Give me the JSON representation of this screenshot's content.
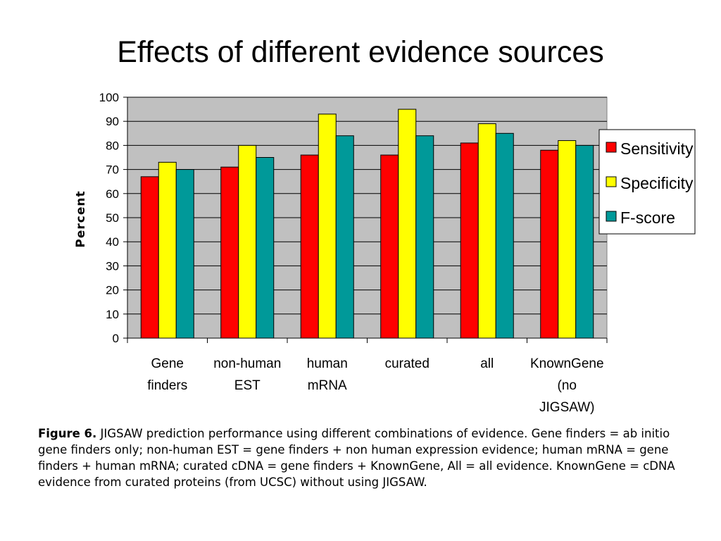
{
  "slide_title": "Effects of different evidence sources",
  "caption": {
    "label": "Figure 6.",
    "text": " JIGSAW prediction performance using different combinations of evidence. Gene finders = ab initio gene finders only; non-human EST = gene finders + non human expression evidence; human mRNA = gene finders + human mRNA; curated cDNA = gene finders + KnownGene, All = all evidence. KnownGene = cDNA evidence from curated proteins (from UCSC) without using JIGSAW."
  },
  "chart_data": {
    "type": "bar",
    "title": "",
    "xlabel": "",
    "ylabel": "Percent",
    "ylim": [
      0,
      100
    ],
    "yticks": [
      0,
      10,
      20,
      30,
      40,
      50,
      60,
      70,
      80,
      90,
      100
    ],
    "grid": true,
    "legend_position": "right",
    "categories": [
      [
        "Gene",
        "finders"
      ],
      [
        "non-human",
        "EST"
      ],
      [
        "human",
        "mRNA"
      ],
      [
        "curated"
      ],
      [
        "all"
      ],
      [
        "KnownGene",
        "(no",
        "JIGSAW)"
      ]
    ],
    "series": [
      {
        "name": "Sensitivity",
        "color": "#ff0000",
        "values": [
          67,
          71,
          76,
          76,
          81,
          78
        ]
      },
      {
        "name": "Specificity",
        "color": "#ffff00",
        "values": [
          73,
          80,
          93,
          95,
          89,
          82
        ]
      },
      {
        "name": "F-score",
        "color": "#009999",
        "values": [
          70,
          75,
          84,
          84,
          85,
          80
        ]
      }
    ],
    "plot_background": "#c0c0c0"
  }
}
